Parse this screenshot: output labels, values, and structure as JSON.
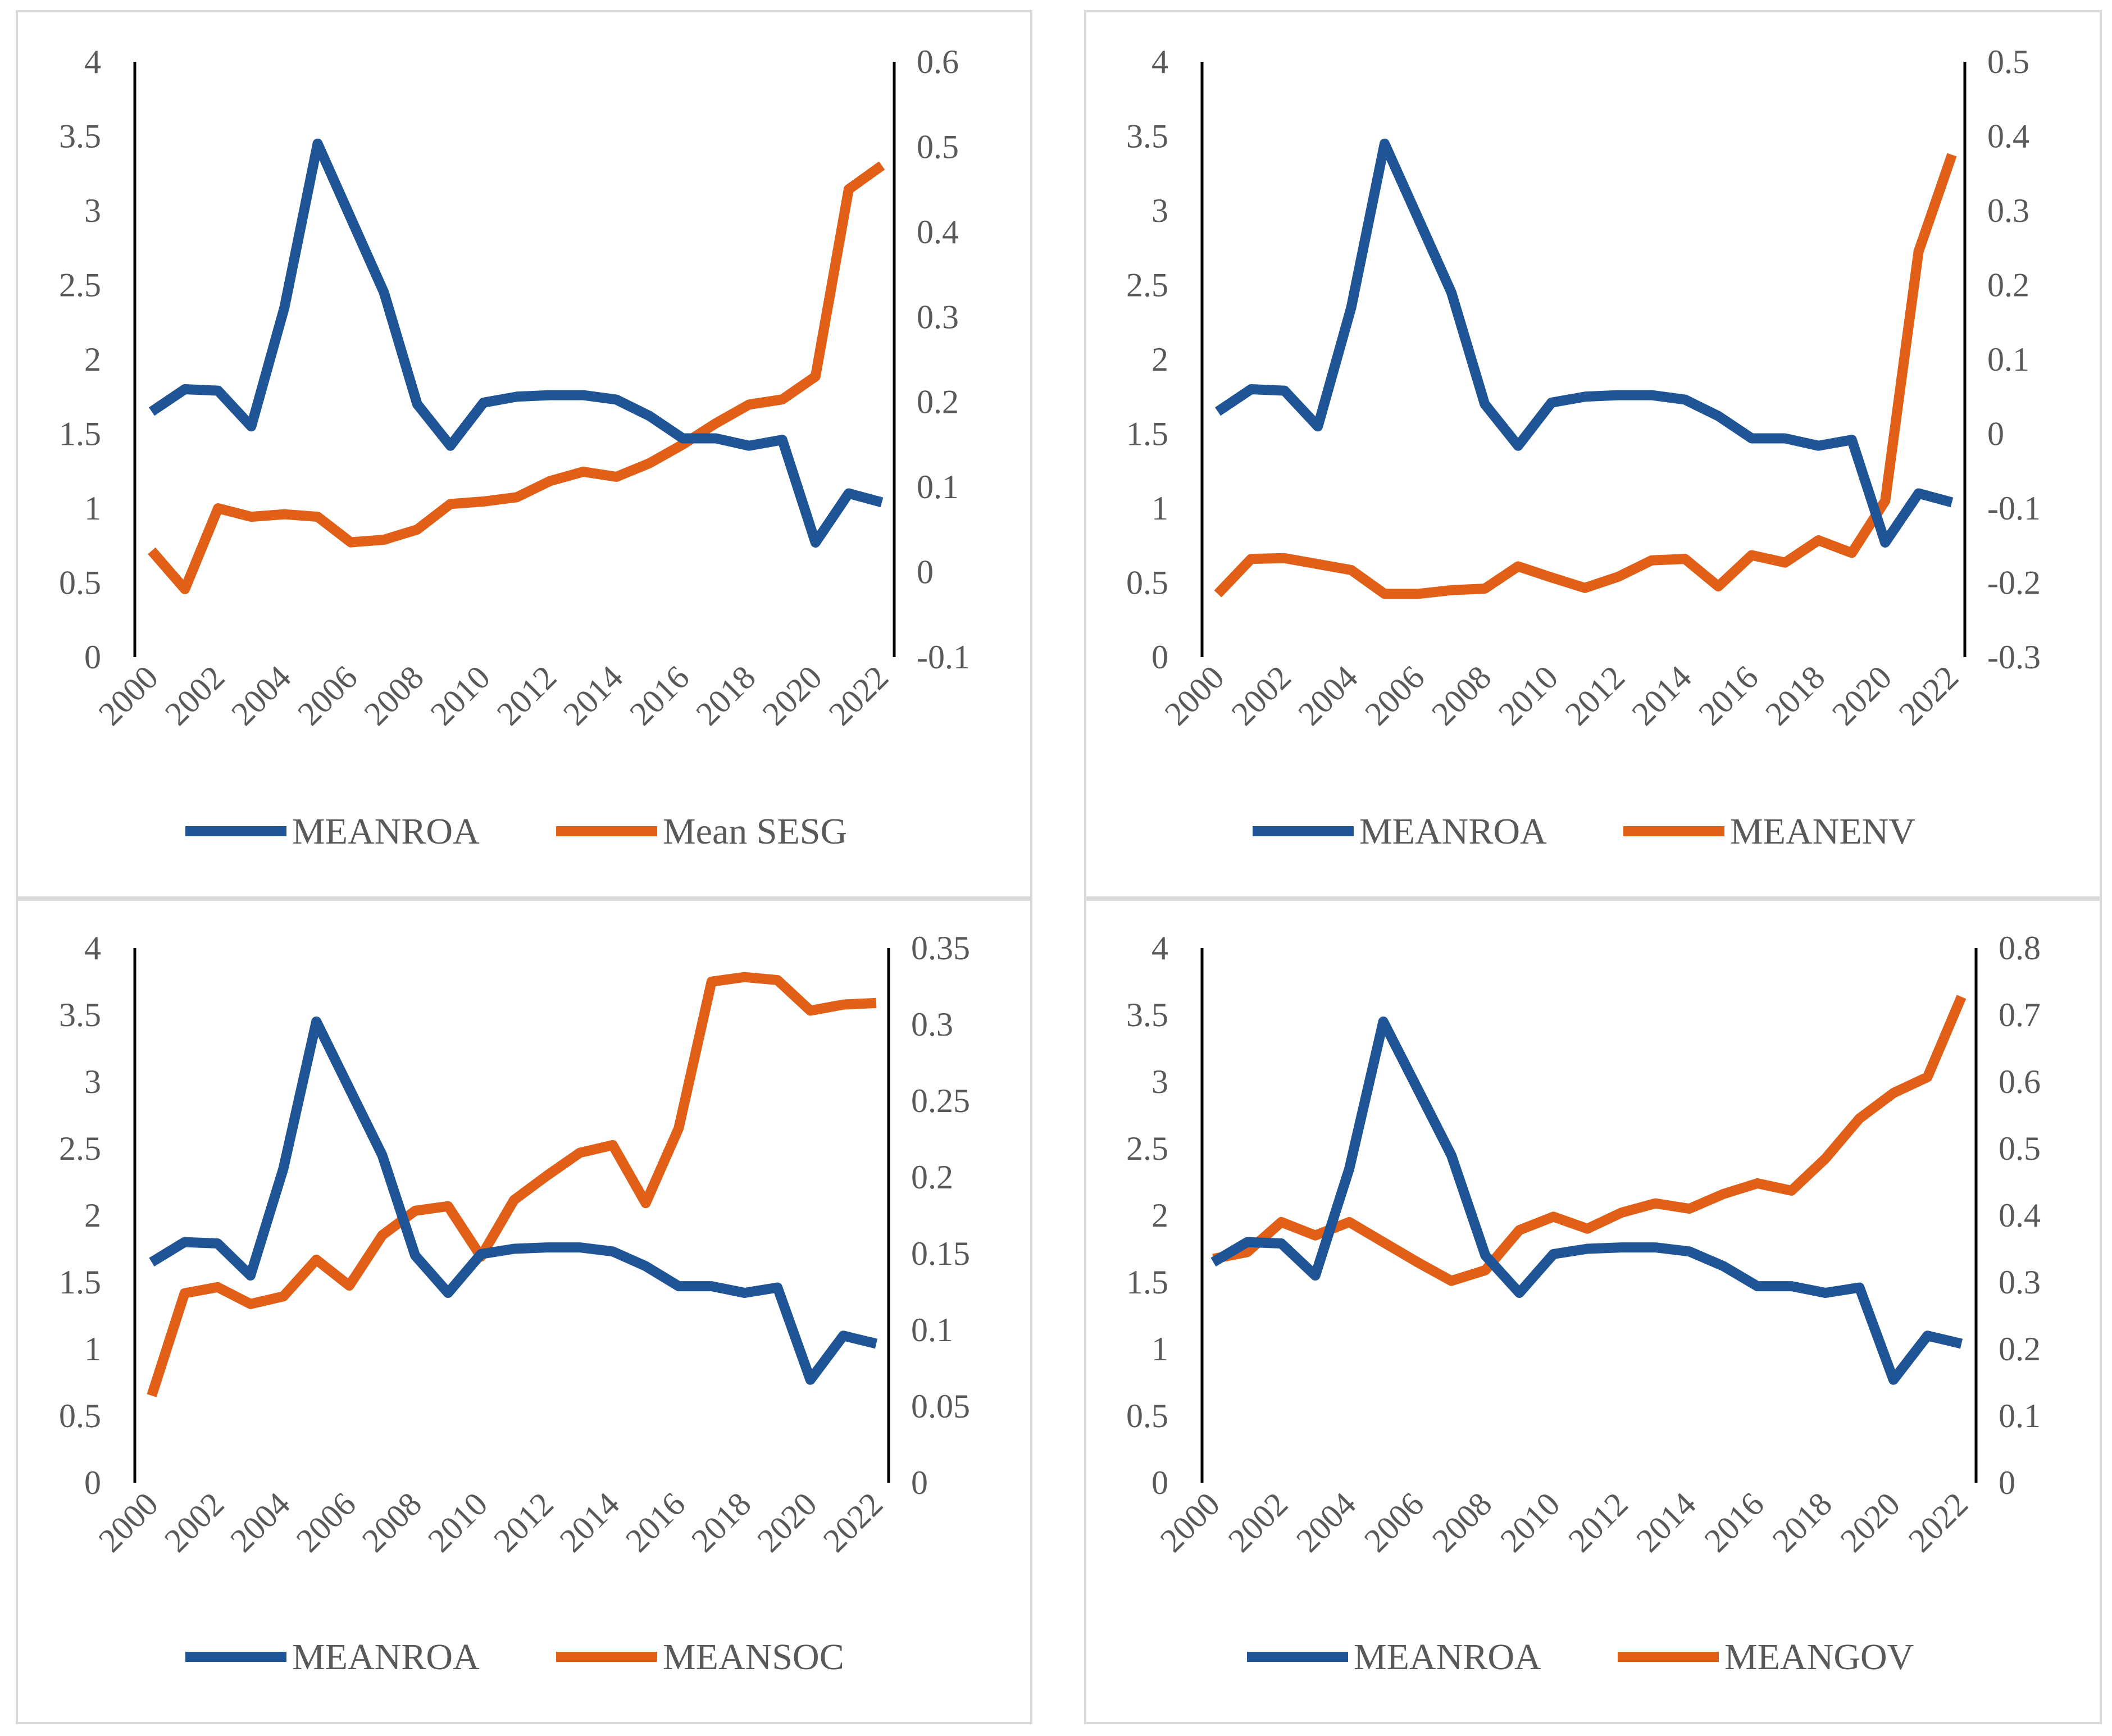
{
  "colors": {
    "roa": "#1f5597",
    "esg": "#e15f16"
  },
  "chart_data": [
    {
      "type": "line",
      "categories": [
        "2000",
        "2001",
        "2002",
        "2003",
        "2004",
        "2005",
        "2006",
        "2007",
        "2008",
        "2009",
        "2010",
        "2011",
        "2012",
        "2013",
        "2014",
        "2015",
        "2016",
        "2017",
        "2018",
        "2019",
        "2020",
        "2021",
        "2022"
      ],
      "x_tick_labels": [
        "2000",
        "2002",
        "2004",
        "2006",
        "2008",
        "2010",
        "2012",
        "2014",
        "2016",
        "2018",
        "2020",
        "2022"
      ],
      "left_axis": {
        "ylim": [
          0,
          4
        ],
        "ticks": [
          "0",
          "0.5",
          "1",
          "1.5",
          "2",
          "2.5",
          "3",
          "3.5",
          "4"
        ]
      },
      "right_axis": {
        "ylim": [
          -0.1,
          0.6
        ],
        "ticks": [
          "-0.1",
          "0",
          "0.1",
          "0.2",
          "0.3",
          "0.4",
          "0.5",
          "0.6"
        ]
      },
      "series": [
        {
          "name": "MEANROA",
          "axis": "left",
          "values": [
            1.65,
            1.8,
            1.79,
            1.55,
            2.35,
            3.45,
            2.95,
            2.45,
            1.7,
            1.42,
            1.71,
            1.75,
            1.76,
            1.76,
            1.73,
            1.62,
            1.47,
            1.47,
            1.42,
            1.46,
            0.77,
            1.1,
            1.04
          ]
        },
        {
          "name": "Mean SESG",
          "axis": "right",
          "values": [
            0.025,
            -0.02,
            0.075,
            0.065,
            0.068,
            0.065,
            0.035,
            0.038,
            0.05,
            0.08,
            0.083,
            0.088,
            0.107,
            0.118,
            0.112,
            0.128,
            0.15,
            0.175,
            0.197,
            0.203,
            0.23,
            0.45,
            0.478
          ]
        }
      ],
      "legend": [
        "MEANROA",
        "Mean SESG"
      ]
    },
    {
      "type": "line",
      "categories": [
        "2000",
        "2001",
        "2002",
        "2003",
        "2004",
        "2005",
        "2006",
        "2007",
        "2008",
        "2009",
        "2010",
        "2011",
        "2012",
        "2013",
        "2014",
        "2015",
        "2016",
        "2017",
        "2018",
        "2019",
        "2020",
        "2021",
        "2022"
      ],
      "x_tick_labels": [
        "2000",
        "2002",
        "2004",
        "2006",
        "2008",
        "2010",
        "2012",
        "2014",
        "2016",
        "2018",
        "2020",
        "2022"
      ],
      "left_axis": {
        "ylim": [
          0,
          4
        ],
        "ticks": [
          "0",
          "0.5",
          "1",
          "1.5",
          "2",
          "2.5",
          "3",
          "3.5",
          "4"
        ]
      },
      "right_axis": {
        "ylim": [
          -0.3,
          0.5
        ],
        "ticks": [
          "-0.3",
          "-0.2",
          "-0.1",
          "0",
          "0.1",
          "0.2",
          "0.3",
          "0.4",
          "0.5"
        ]
      },
      "series": [
        {
          "name": "MEANROA",
          "axis": "left",
          "values": [
            1.65,
            1.8,
            1.79,
            1.55,
            2.35,
            3.45,
            2.95,
            2.45,
            1.7,
            1.42,
            1.71,
            1.75,
            1.76,
            1.76,
            1.73,
            1.62,
            1.47,
            1.47,
            1.42,
            1.46,
            0.77,
            1.1,
            1.04
          ]
        },
        {
          "name": "MEANENV",
          "axis": "right",
          "values": [
            -0.215,
            -0.168,
            -0.167,
            -0.175,
            -0.183,
            -0.215,
            -0.215,
            -0.21,
            -0.208,
            -0.178,
            -0.193,
            -0.207,
            -0.192,
            -0.17,
            -0.168,
            -0.205,
            -0.163,
            -0.173,
            -0.143,
            -0.16,
            -0.09,
            0.245,
            0.375
          ]
        }
      ],
      "legend": [
        "MEANROA",
        "MEANENV"
      ]
    },
    {
      "type": "line",
      "categories": [
        "2000",
        "2001",
        "2002",
        "2003",
        "2004",
        "2005",
        "2006",
        "2007",
        "2008",
        "2009",
        "2010",
        "2011",
        "2012",
        "2013",
        "2014",
        "2015",
        "2016",
        "2017",
        "2018",
        "2019",
        "2020",
        "2021",
        "2022"
      ],
      "x_tick_labels": [
        "2000",
        "2002",
        "2004",
        "2006",
        "2008",
        "2010",
        "2012",
        "2014",
        "2016",
        "2018",
        "2020",
        "2022"
      ],
      "left_axis": {
        "ylim": [
          0,
          4
        ],
        "ticks": [
          "0",
          "0.5",
          "1",
          "1.5",
          "2",
          "2.5",
          "3",
          "3.5",
          "4"
        ]
      },
      "right_axis": {
        "ylim": [
          0,
          0.35
        ],
        "ticks": [
          "0",
          "0.05",
          "0.1",
          "0.15",
          "0.2",
          "0.25",
          "0.3",
          "0.35"
        ]
      },
      "series": [
        {
          "name": "MEANROA",
          "axis": "left",
          "values": [
            1.65,
            1.8,
            1.79,
            1.55,
            2.35,
            3.45,
            2.95,
            2.45,
            1.7,
            1.42,
            1.71,
            1.75,
            1.76,
            1.76,
            1.73,
            1.62,
            1.47,
            1.47,
            1.42,
            1.46,
            0.77,
            1.1,
            1.04
          ]
        },
        {
          "name": "MEANSOC",
          "axis": "right",
          "values": [
            0.057,
            0.124,
            0.128,
            0.117,
            0.122,
            0.146,
            0.129,
            0.162,
            0.178,
            0.181,
            0.148,
            0.185,
            0.201,
            0.216,
            0.221,
            0.183,
            0.232,
            0.328,
            0.331,
            0.329,
            0.309,
            0.313,
            0.314
          ]
        }
      ],
      "legend": [
        "MEANROA",
        "MEANSOC"
      ]
    },
    {
      "type": "line",
      "categories": [
        "2000",
        "2001",
        "2002",
        "2003",
        "2004",
        "2005",
        "2006",
        "2007",
        "2008",
        "2009",
        "2010",
        "2011",
        "2012",
        "2013",
        "2014",
        "2015",
        "2016",
        "2017",
        "2018",
        "2019",
        "2020",
        "2021",
        "2022"
      ],
      "x_tick_labels": [
        "2000",
        "2002",
        "2004",
        "2006",
        "2008",
        "2010",
        "2012",
        "2014",
        "2016",
        "2018",
        "2020",
        "2022"
      ],
      "left_axis": {
        "ylim": [
          0,
          4
        ],
        "ticks": [
          "0",
          "0.5",
          "1",
          "1.5",
          "2",
          "2.5",
          "3",
          "3.5",
          "4"
        ]
      },
      "right_axis": {
        "ylim": [
          0,
          0.8
        ],
        "ticks": [
          "0",
          "0.1",
          "0.2",
          "0.3",
          "0.4",
          "0.5",
          "0.6",
          "0.7",
          "0.8"
        ]
      },
      "series": [
        {
          "name": "MEANROA",
          "axis": "left",
          "values": [
            1.65,
            1.8,
            1.79,
            1.55,
            2.35,
            3.45,
            2.95,
            2.45,
            1.7,
            1.42,
            1.71,
            1.75,
            1.76,
            1.76,
            1.73,
            1.62,
            1.47,
            1.47,
            1.42,
            1.46,
            0.77,
            1.1,
            1.04
          ]
        },
        {
          "name": "MEANGOV",
          "axis": "right",
          "values": [
            0.335,
            0.345,
            0.39,
            0.37,
            0.39,
            0.36,
            0.33,
            0.302,
            0.318,
            0.378,
            0.398,
            0.38,
            0.404,
            0.418,
            0.41,
            0.432,
            0.448,
            0.437,
            0.485,
            0.545,
            0.583,
            0.607,
            0.727
          ]
        }
      ],
      "legend": [
        "MEANROA",
        "MEANGOV"
      ]
    }
  ]
}
